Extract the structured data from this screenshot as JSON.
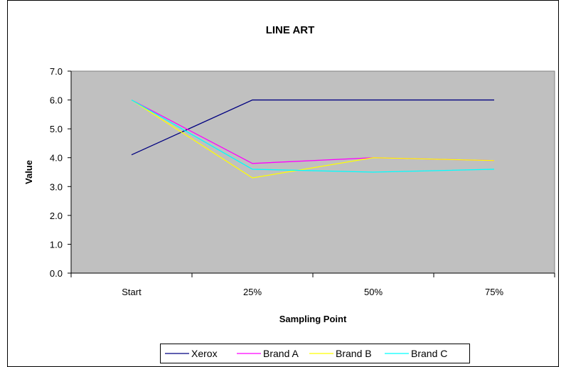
{
  "chart_data": {
    "type": "line",
    "title": "LINE ART",
    "xlabel": "Sampling Point",
    "ylabel": "Value",
    "categories": [
      "Start",
      "25%",
      "50%",
      "75%"
    ],
    "ylim": [
      0,
      7
    ],
    "yticks": [
      "0.0",
      "1.0",
      "2.0",
      "3.0",
      "4.0",
      "5.0",
      "6.0",
      "7.0"
    ],
    "grid": false,
    "plot_background": "#C0C0C0",
    "legend_position": "bottom",
    "series": [
      {
        "name": "Xerox",
        "color": "#000080",
        "values": [
          4.1,
          6.0,
          6.0,
          6.0
        ]
      },
      {
        "name": "Brand A",
        "color": "#FF00FF",
        "values": [
          6.0,
          3.8,
          4.0,
          3.9
        ]
      },
      {
        "name": "Brand B",
        "color": "#FFFF00",
        "values": [
          6.0,
          3.3,
          4.0,
          3.9
        ]
      },
      {
        "name": "Brand C",
        "color": "#00FFFF",
        "values": [
          6.0,
          3.6,
          3.5,
          3.6
        ]
      }
    ]
  }
}
